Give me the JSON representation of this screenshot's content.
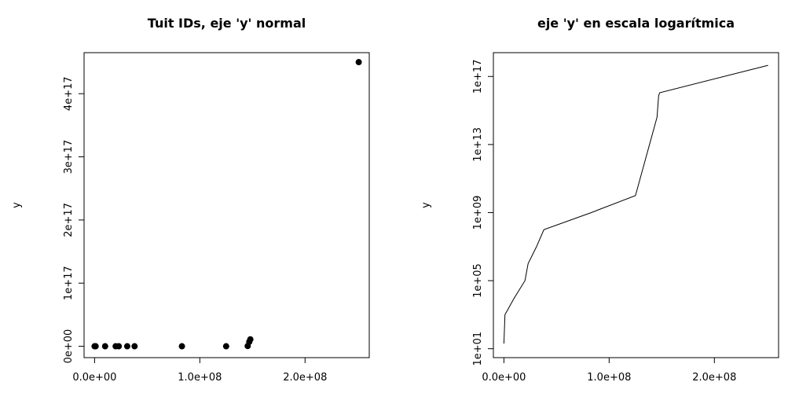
{
  "chart_data": [
    {
      "type": "scatter",
      "title": "Tuit IDs, eje 'y' normal",
      "y_label": "y",
      "color": "#000000",
      "log_y": false,
      "x": [
        0,
        1000000,
        10000000,
        20000000,
        23000000,
        31000000,
        38000000,
        83000000,
        125000000,
        145500000,
        147000000,
        148000000,
        251000000
      ],
      "values": [
        20,
        1000,
        10000,
        100000,
        1000000,
        10000000,
        100000000,
        1000000000,
        10000000000,
        400000000000000,
        7000000000000000,
        11000000000000000,
        450000000000000000
      ],
      "xlim": [
        -10000000,
        261000000
      ],
      "xticks": [
        {
          "value": 0,
          "label": "0.0e+00"
        },
        {
          "value": 100000000,
          "label": "1.0e+08"
        },
        {
          "value": 200000000,
          "label": "2.0e+08"
        }
      ],
      "ylim": [
        -18000000000000000,
        465000000000000000
      ],
      "yticks": [
        {
          "value": 0,
          "label": "0e+00"
        },
        {
          "value": 100000000000000000,
          "label": "1e+17"
        },
        {
          "value": 200000000000000000,
          "label": "2e+17"
        },
        {
          "value": 300000000000000000,
          "label": "3e+17"
        },
        {
          "value": 400000000000000000,
          "label": "4e+17"
        }
      ]
    },
    {
      "type": "line",
      "title": "eje 'y' en escala logarítmica",
      "y_label": "y",
      "color": "#000000",
      "log_y": true,
      "x": [
        0,
        1000000,
        10000000,
        20000000,
        23000000,
        31000000,
        38000000,
        83000000,
        125000000,
        145500000,
        147000000,
        148000000,
        251000000
      ],
      "values": [
        20,
        1000,
        10000,
        100000,
        1000000,
        10000000,
        100000000,
        1000000000,
        10000000000,
        400000000000000,
        7000000000000000,
        11000000000000000,
        450000000000000000
      ],
      "xlim": [
        -10000000,
        261000000
      ],
      "xticks": [
        {
          "value": 0,
          "label": "0.0e+00"
        },
        {
          "value": 100000000,
          "label": "1.0e+08"
        },
        {
          "value": 200000000,
          "label": "2.0e+08"
        }
      ],
      "ylim": [
        3,
        2500000000000000000
      ],
      "yticks": [
        {
          "value": 10,
          "label": "1e+01"
        },
        {
          "value": 100000,
          "label": "1e+05"
        },
        {
          "value": 1000000000,
          "label": "1e+09"
        },
        {
          "value": 10000000000000,
          "label": "1e+13"
        },
        {
          "value": 100000000000000000,
          "label": "1e+17"
        }
      ]
    }
  ]
}
